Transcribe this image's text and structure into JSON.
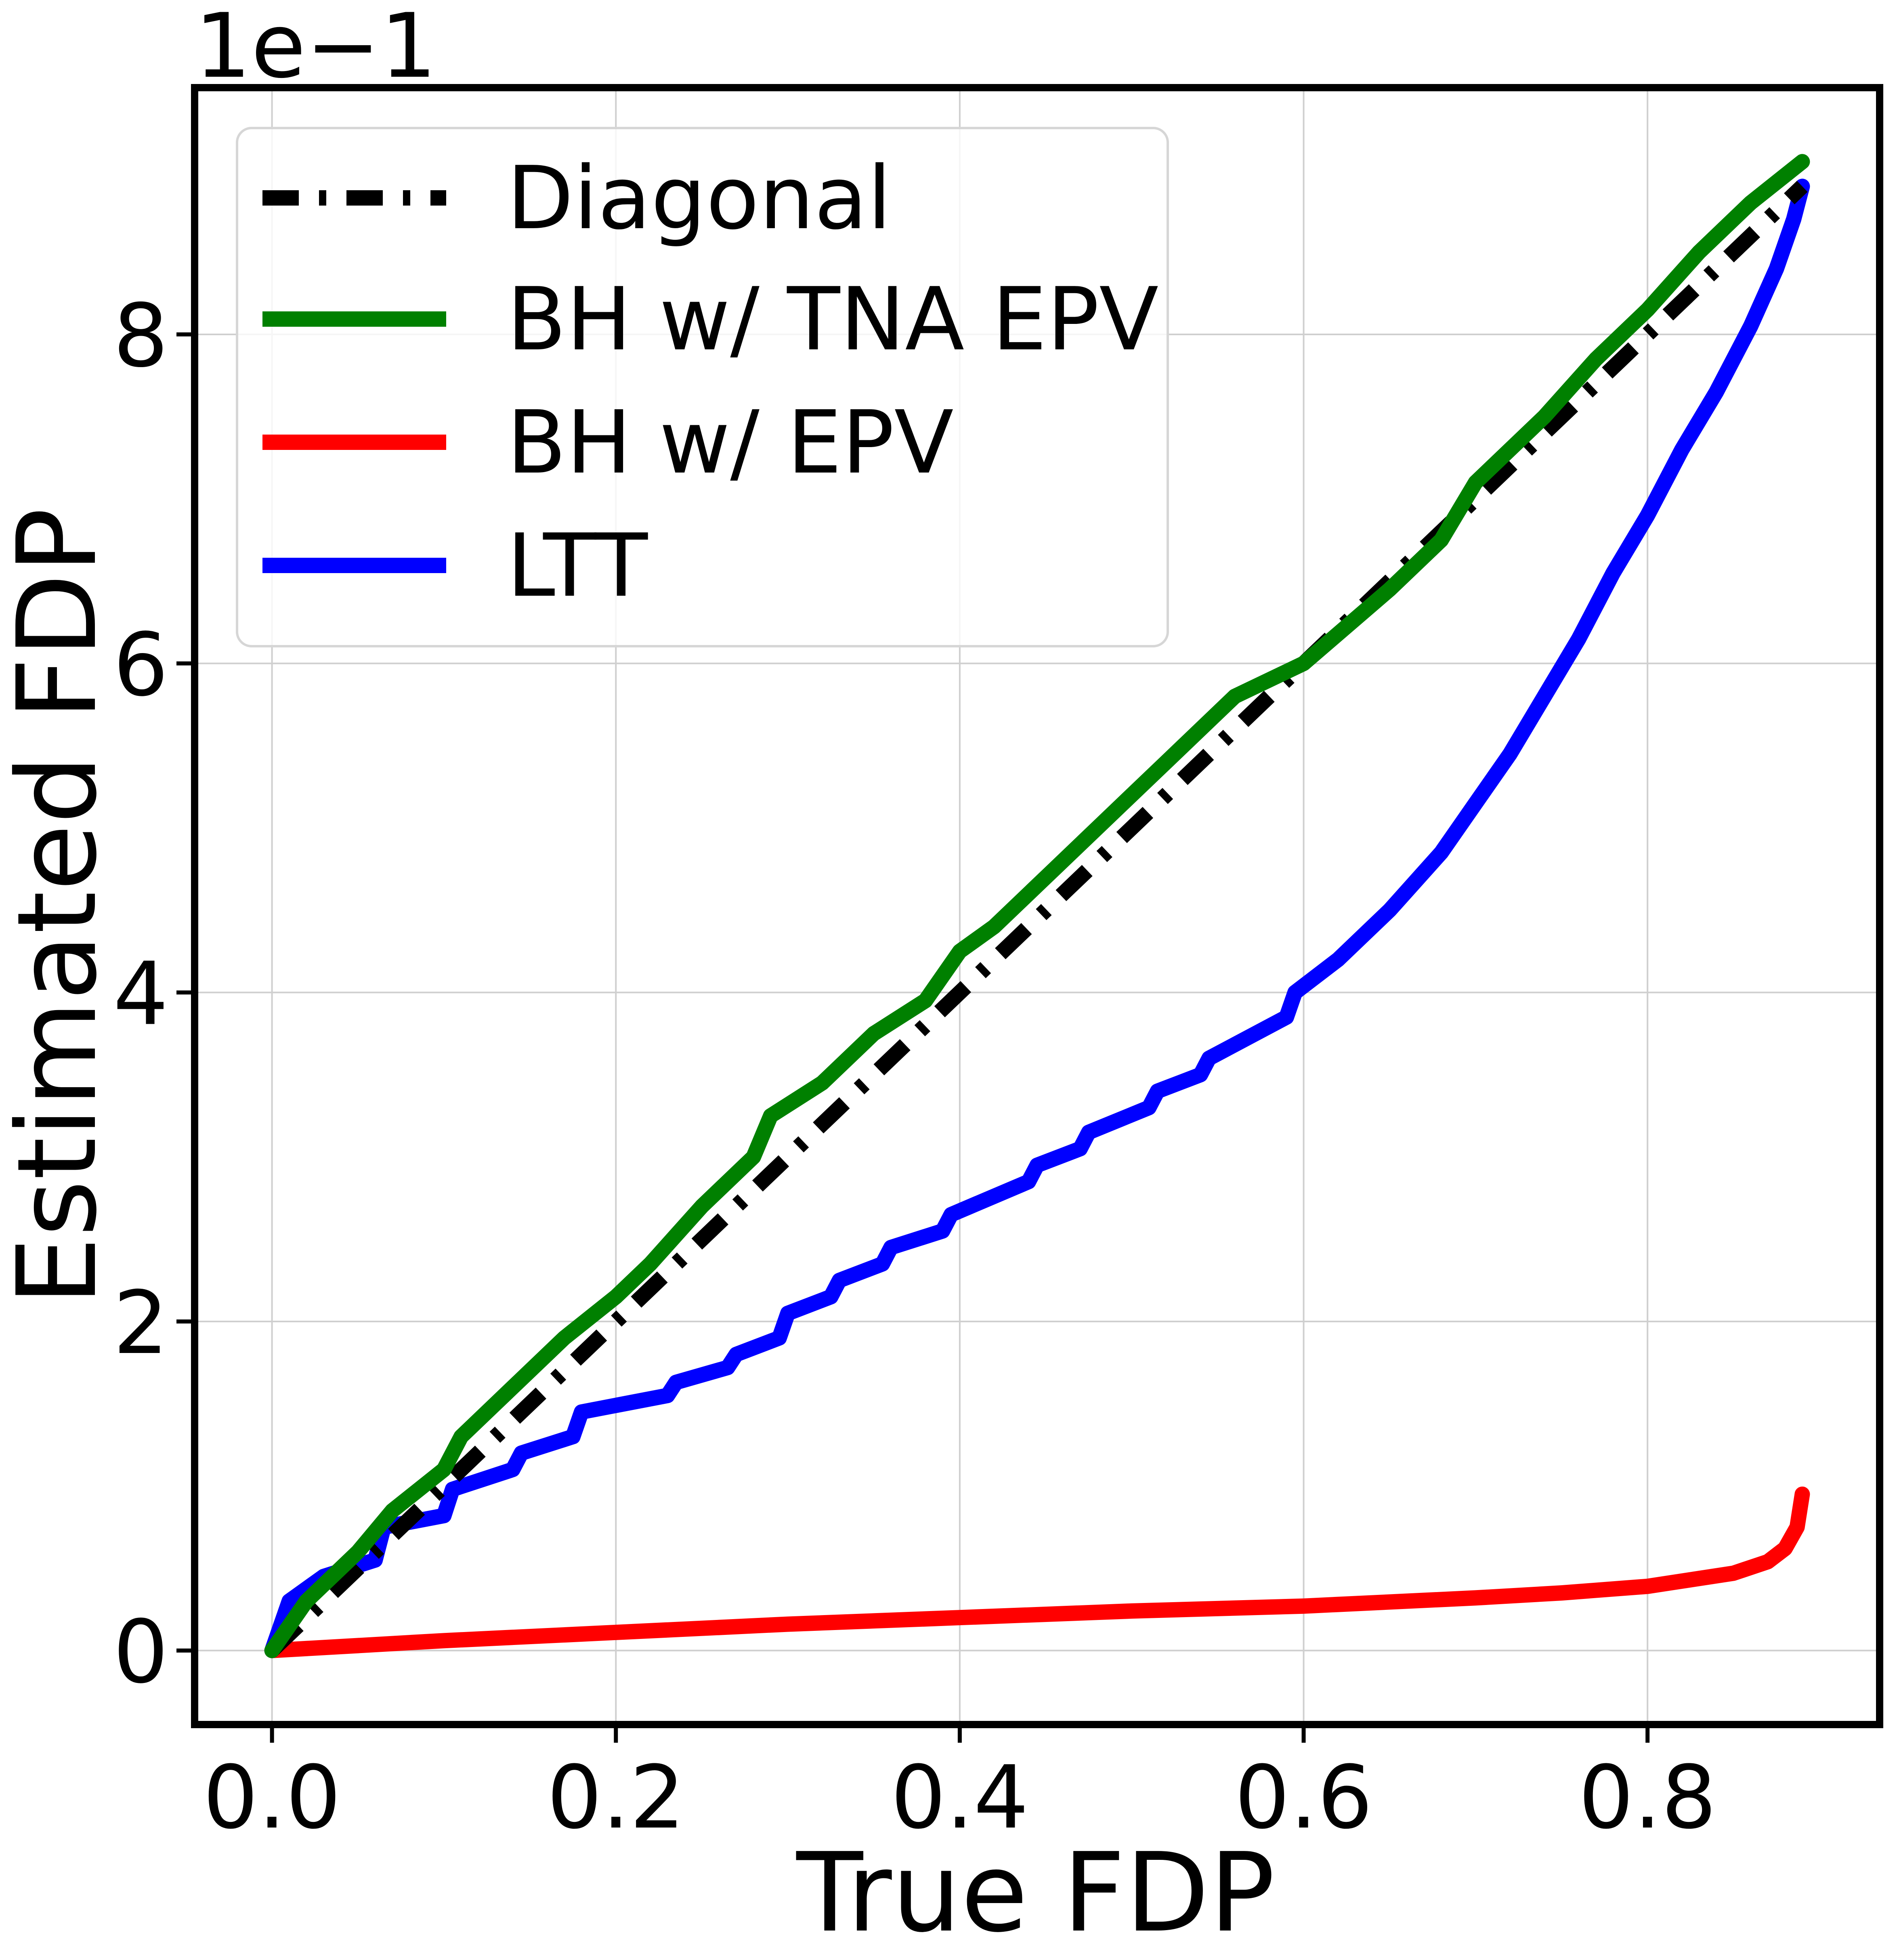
{
  "chart_data": {
    "type": "line",
    "title": "",
    "xlabel": "True FDP",
    "ylabel": "Estimated FDP",
    "y_offset_text": "1e−1",
    "xlim": [
      -0.045,
      0.935
    ],
    "ylim": [
      -0.045,
      0.95
    ],
    "grid": true,
    "legend_position": "upper left",
    "x_ticks": [
      0.0,
      0.2,
      0.4,
      0.6,
      0.8
    ],
    "x_tick_labels": [
      "0.0",
      "0.2",
      "0.4",
      "0.6",
      "0.8"
    ],
    "y_ticks": [
      0.0,
      0.2,
      0.4,
      0.6,
      0.8
    ],
    "y_tick_labels": [
      "0",
      "2",
      "4",
      "6",
      "8"
    ],
    "series": [
      {
        "name": "Diagonal",
        "color": "#000000",
        "style": "dashdot",
        "x": [
          0.0,
          0.89
        ],
        "y": [
          0.0,
          0.89
        ]
      },
      {
        "name": "BH w/ TNA EPV",
        "color": "#008000",
        "style": "solid",
        "x": [
          0.0,
          0.02,
          0.05,
          0.07,
          0.1,
          0.11,
          0.13,
          0.17,
          0.2,
          0.22,
          0.25,
          0.28,
          0.29,
          0.32,
          0.35,
          0.38,
          0.4,
          0.42,
          0.45,
          0.5,
          0.52,
          0.56,
          0.6,
          0.65,
          0.68,
          0.7,
          0.74,
          0.77,
          0.8,
          0.83,
          0.86,
          0.89
        ],
        "y": [
          0.0,
          0.03,
          0.06,
          0.085,
          0.11,
          0.13,
          0.15,
          0.19,
          0.215,
          0.235,
          0.27,
          0.3,
          0.325,
          0.345,
          0.375,
          0.395,
          0.425,
          0.44,
          0.47,
          0.52,
          0.54,
          0.58,
          0.6,
          0.645,
          0.675,
          0.71,
          0.75,
          0.785,
          0.815,
          0.85,
          0.88,
          0.905
        ]
      },
      {
        "name": "BH w/ EPV",
        "color": "#ff0000",
        "style": "solid",
        "x": [
          0.0,
          0.1,
          0.2,
          0.3,
          0.4,
          0.5,
          0.6,
          0.7,
          0.75,
          0.8,
          0.85,
          0.87,
          0.88,
          0.887,
          0.89
        ],
        "y": [
          0.0,
          0.006,
          0.011,
          0.016,
          0.02,
          0.024,
          0.027,
          0.032,
          0.035,
          0.039,
          0.047,
          0.054,
          0.062,
          0.075,
          0.095
        ]
      },
      {
        "name": "LTT",
        "color": "#0000ff",
        "style": "solid",
        "x": [
          0.0,
          0.005,
          0.01,
          0.03,
          0.06,
          0.065,
          0.1,
          0.105,
          0.14,
          0.145,
          0.175,
          0.18,
          0.23,
          0.235,
          0.265,
          0.27,
          0.295,
          0.3,
          0.325,
          0.33,
          0.355,
          0.36,
          0.39,
          0.395,
          0.44,
          0.445,
          0.47,
          0.475,
          0.51,
          0.515,
          0.54,
          0.545,
          0.59,
          0.595,
          0.62,
          0.65,
          0.68,
          0.7,
          0.72,
          0.74,
          0.76,
          0.78,
          0.8,
          0.82,
          0.84,
          0.86,
          0.875,
          0.885,
          0.89
        ],
        "y": [
          0.0,
          0.015,
          0.03,
          0.045,
          0.055,
          0.075,
          0.082,
          0.098,
          0.11,
          0.12,
          0.13,
          0.145,
          0.155,
          0.163,
          0.172,
          0.18,
          0.19,
          0.205,
          0.215,
          0.225,
          0.235,
          0.245,
          0.255,
          0.265,
          0.285,
          0.295,
          0.305,
          0.315,
          0.33,
          0.34,
          0.35,
          0.36,
          0.385,
          0.4,
          0.42,
          0.45,
          0.485,
          0.515,
          0.545,
          0.58,
          0.615,
          0.655,
          0.69,
          0.73,
          0.765,
          0.805,
          0.84,
          0.87,
          0.89
        ]
      }
    ]
  }
}
